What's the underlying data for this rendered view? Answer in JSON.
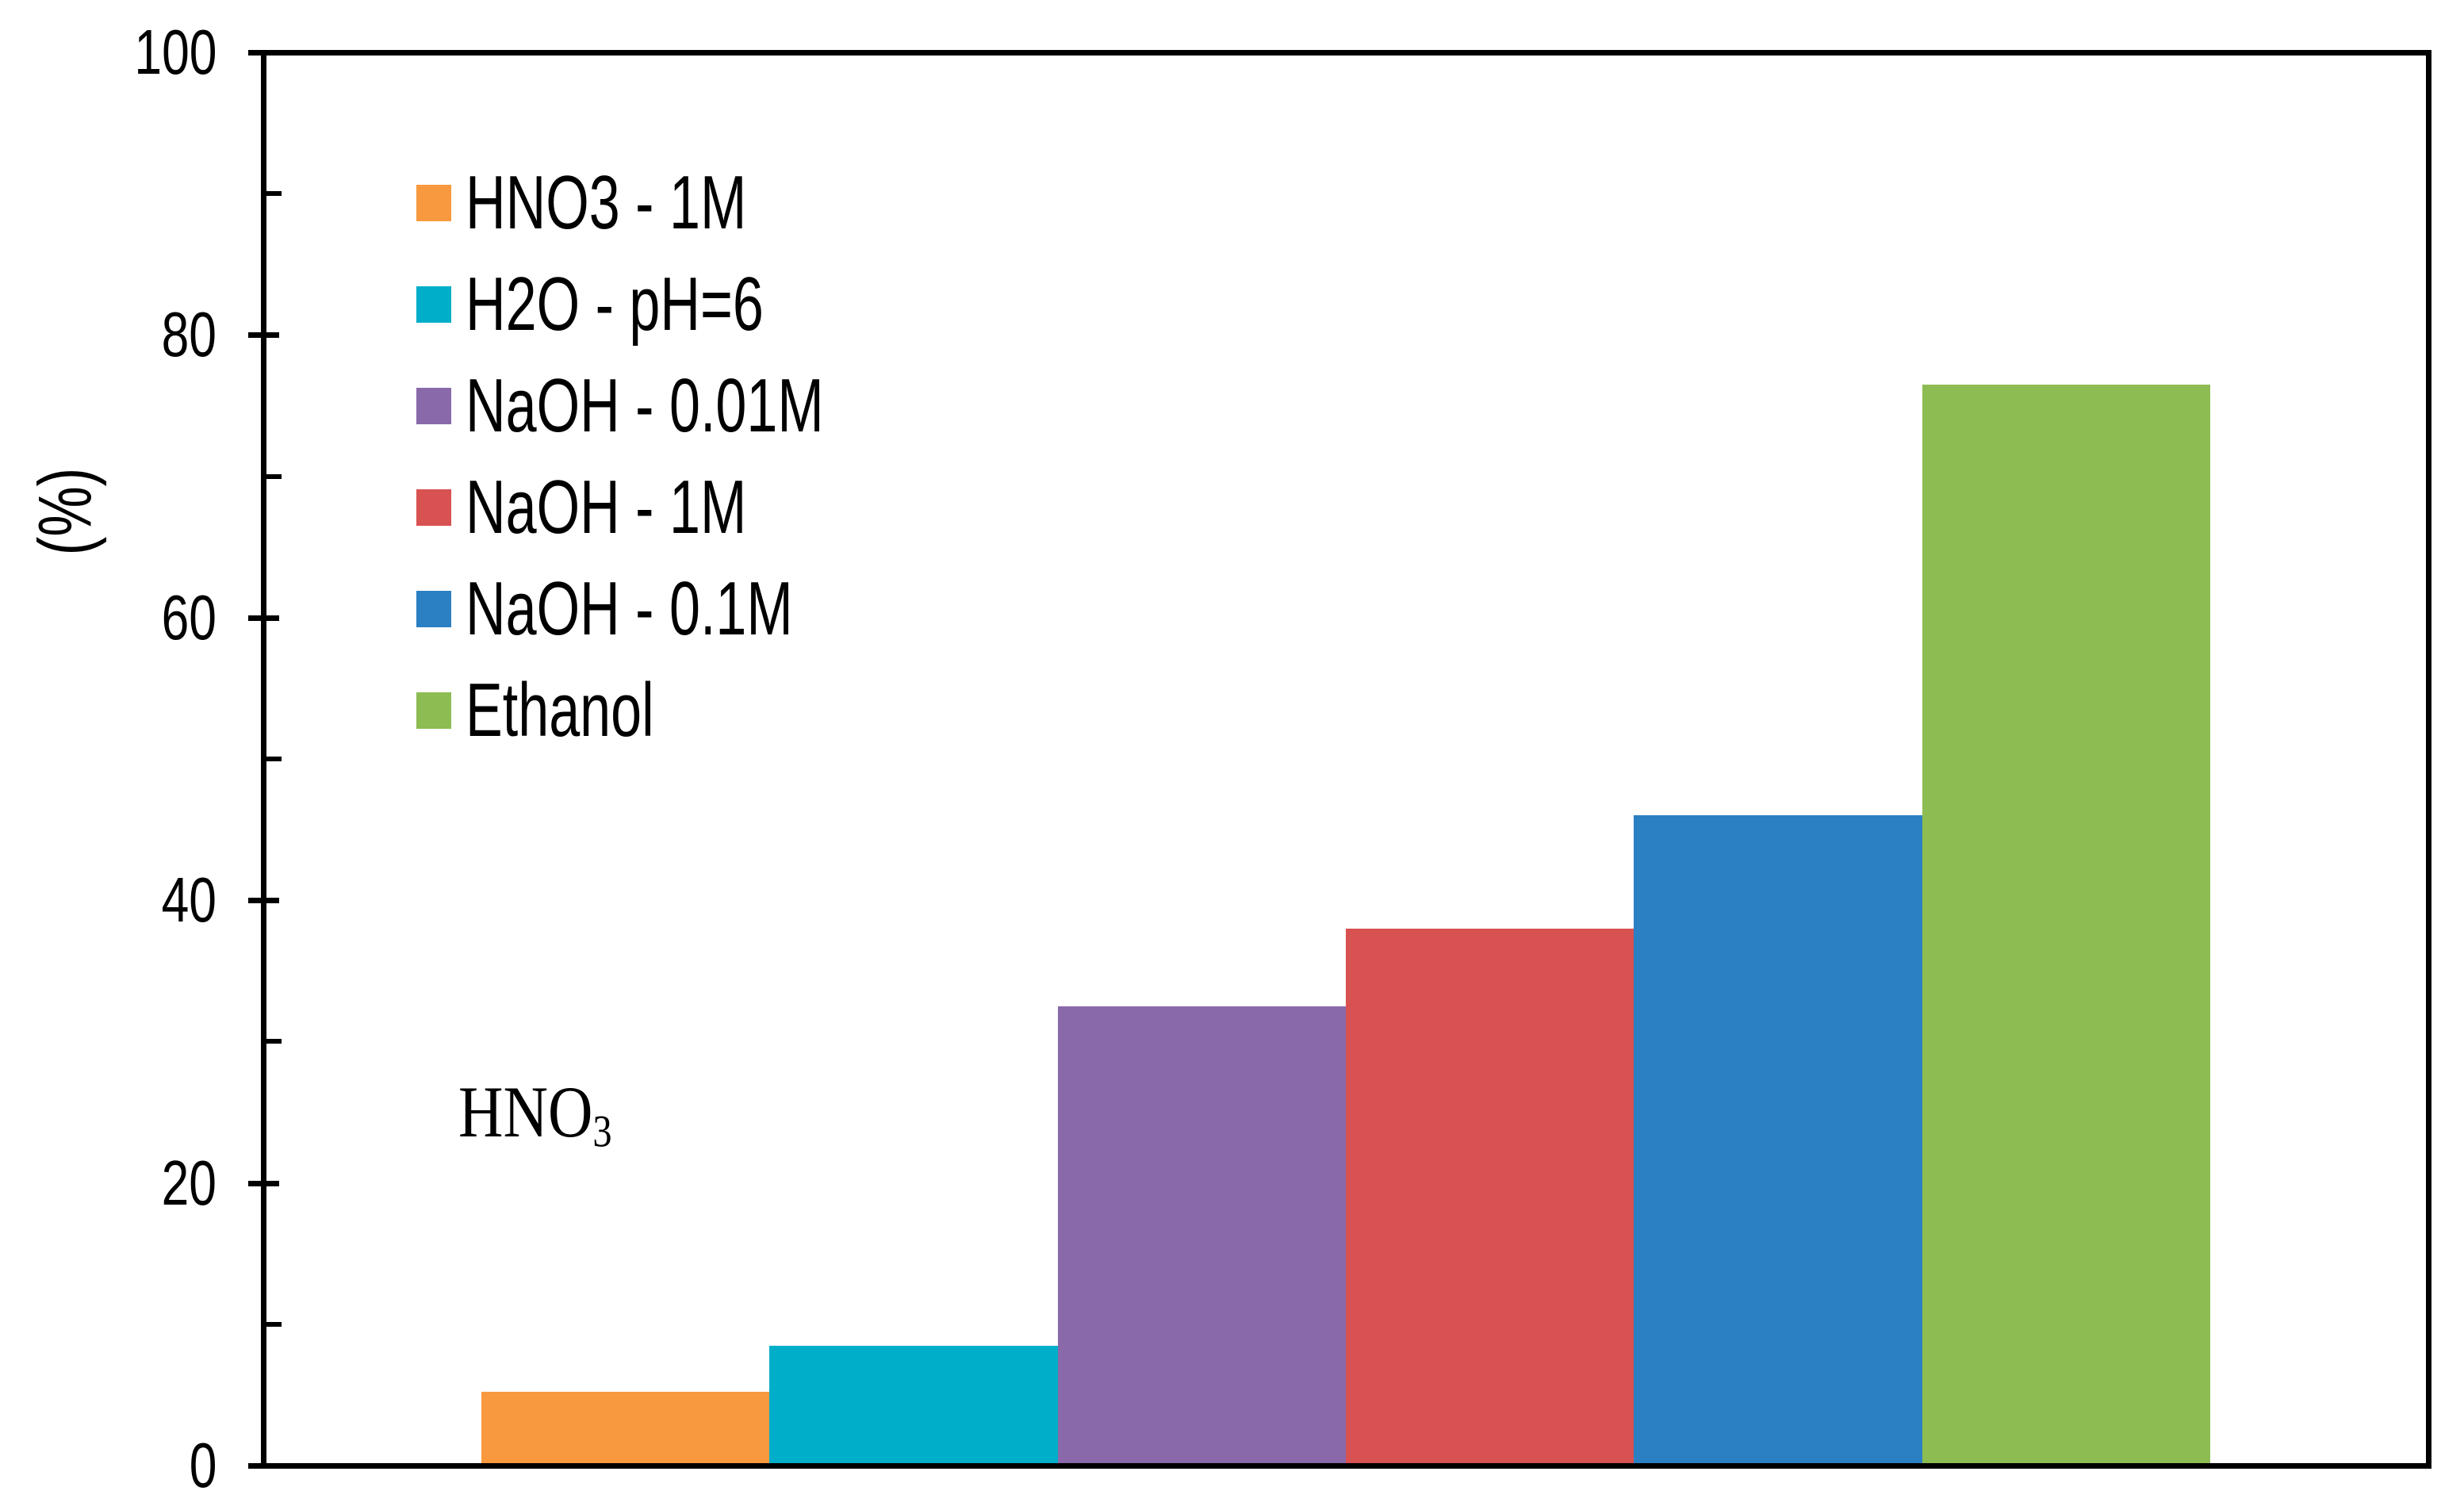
{
  "figure": {
    "background": "#FFFFFF",
    "axis_color": "#000000"
  },
  "chart_data": {
    "type": "bar",
    "title": "",
    "xlabel": "",
    "ylabel": "(%)",
    "ylim": [
      0,
      100
    ],
    "yticks_major": [
      0,
      20,
      40,
      60,
      80,
      100
    ],
    "yticks_minor": [
      10,
      30,
      50,
      70,
      90
    ],
    "grid": "off",
    "legend_position": "upper-left-inside",
    "series": [
      {
        "name": "HNO3 - 1M",
        "value": 5.2,
        "color": "#F8993F"
      },
      {
        "name": "H2O - pH=6",
        "value": 8.5,
        "color": "#00AEC9"
      },
      {
        "name": "NaOH - 0.01M",
        "value": 32.5,
        "color": "#8969AA"
      },
      {
        "name": "NaOH - 1M",
        "value": 38,
        "color": "#D85251"
      },
      {
        "name": "NaOH - 0.1M",
        "value": 46,
        "color": "#2B80C3"
      },
      {
        "name": "Ethanol",
        "value": 76.5,
        "color": "#8DBC53"
      }
    ],
    "annotation": {
      "base": "HNO",
      "sub": "3"
    }
  }
}
